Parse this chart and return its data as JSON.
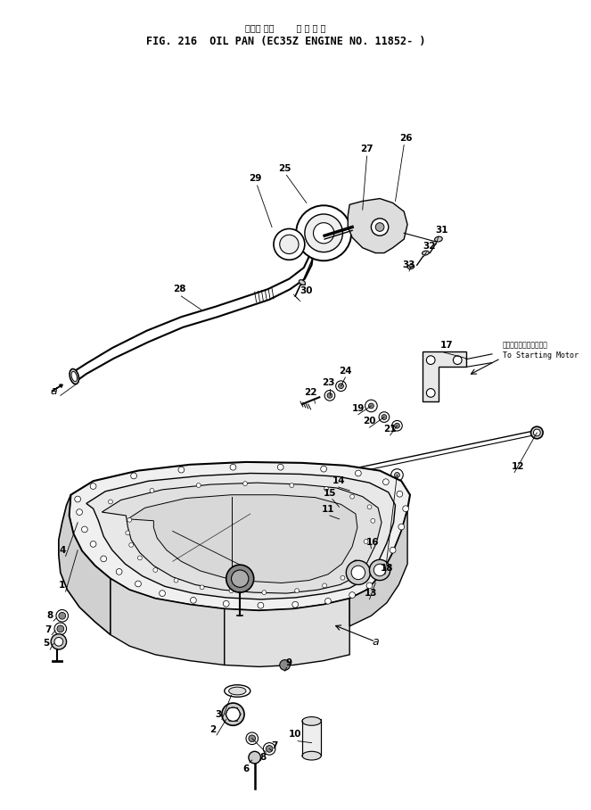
{
  "title_jp": "オイル パン        適 用 号 機",
  "title_en": "FIG. 216  OIL PAN (EC35Z ENGINE NO. 11852- )",
  "bg_color": "#ffffff",
  "lc": "#000000",
  "annotation_jp": "スターティングモータへ",
  "annotation_en": "To Starting Motor"
}
